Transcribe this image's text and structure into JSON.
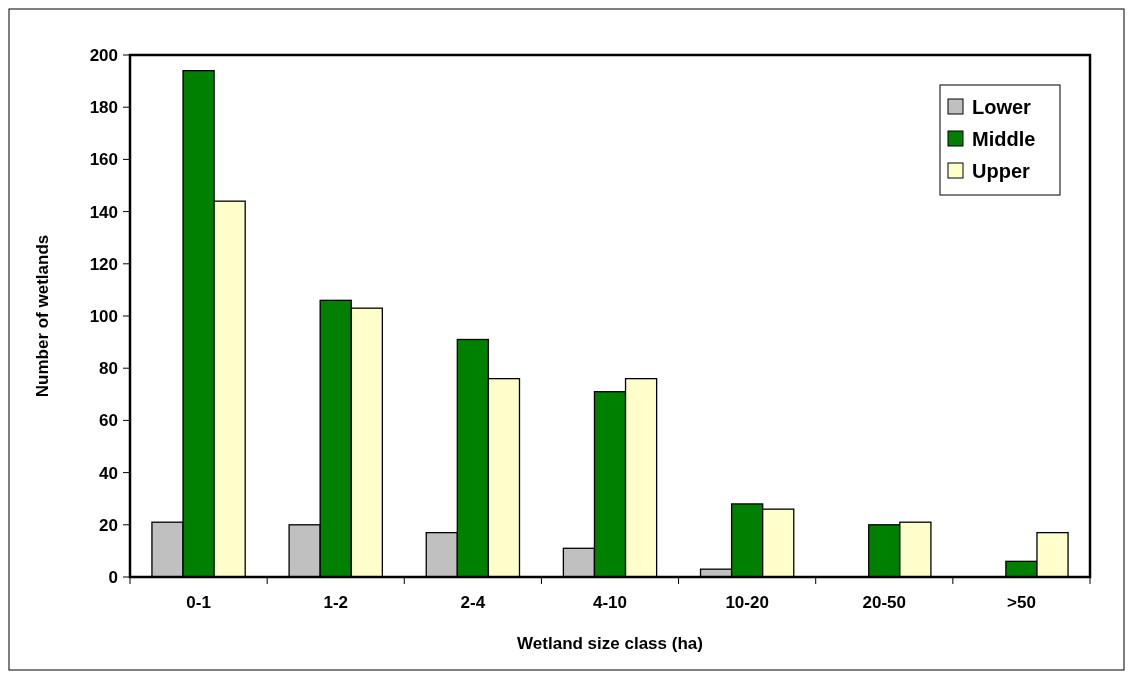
{
  "chart_data": {
    "type": "bar",
    "xlabel": "Wetland size class (ha)",
    "ylabel": "Number of wetlands",
    "categories": [
      "0-1",
      "1-2",
      "2-4",
      "4-10",
      "10-20",
      "20-50",
      ">50"
    ],
    "series": [
      {
        "name": "Lower",
        "color": "#c0c0c0",
        "values": [
          21,
          20,
          17,
          11,
          3,
          0,
          0
        ]
      },
      {
        "name": "Middle",
        "color": "#008000",
        "values": [
          194,
          106,
          91,
          71,
          28,
          20,
          6
        ]
      },
      {
        "name": "Upper",
        "color": "#ffffcc",
        "values": [
          144,
          103,
          76,
          76,
          26,
          21,
          17
        ]
      }
    ],
    "ylim": [
      0,
      200
    ],
    "yticks": [
      0,
      20,
      40,
      60,
      80,
      100,
      120,
      140,
      160,
      180,
      200
    ],
    "grid": false,
    "legend": "top right"
  }
}
